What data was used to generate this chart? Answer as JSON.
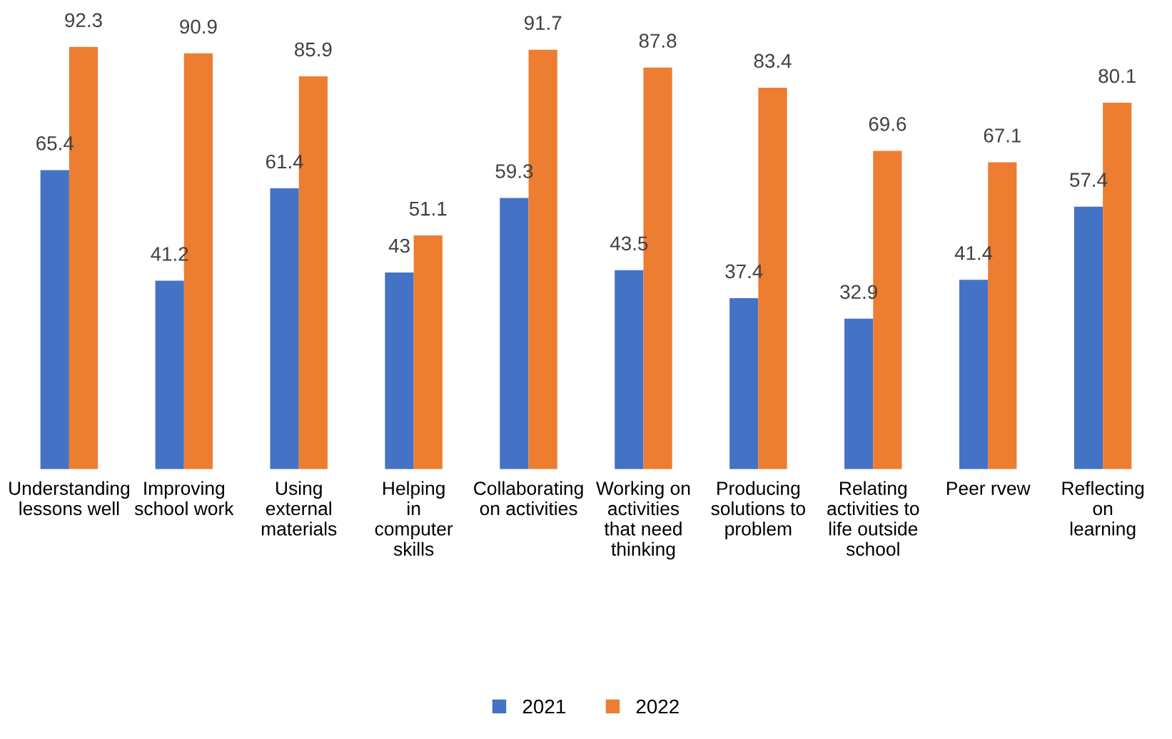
{
  "chart_data": {
    "type": "bar",
    "categories": [
      "Understanding\nlessons well",
      "Improving\nschool work",
      "Using\nexternal\nmaterials",
      "Helping\nin\ncomputer\nskills",
      "Collaborating\non activities",
      "Working on\nactivities\nthat need\nthinking",
      "Producing\nsolutions to\nproblem",
      "Relating\nactivities to\nlife outside\nschool",
      "Peer rvew",
      "Reflecting\non\nlearning"
    ],
    "series": [
      {
        "name": "2021",
        "color": "#4472c4",
        "values": [
          65.4,
          41.2,
          61.4,
          43,
          59.3,
          43.5,
          37.4,
          32.9,
          41.4,
          57.4
        ]
      },
      {
        "name": "2022",
        "color": "#ed7d31",
        "values": [
          92.3,
          90.9,
          85.9,
          51.1,
          91.7,
          87.8,
          83.4,
          69.6,
          67.1,
          80.1
        ]
      }
    ],
    "data_labels": true,
    "grid": false,
    "legend": "bottom"
  }
}
